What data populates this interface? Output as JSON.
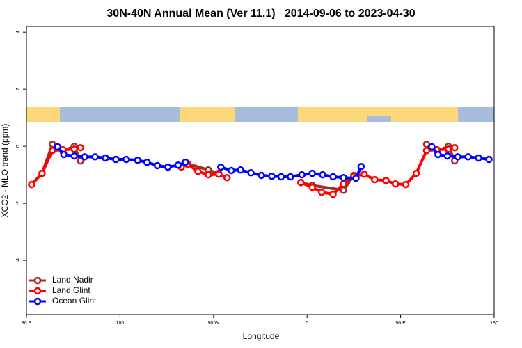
{
  "chart_data": {
    "type": "line",
    "title": "30N-40N Annual Mean (Ver 11.1)   2014-09-06 to 2023-04-30",
    "x_label": "Longitude",
    "y_label": "XCO2 - MLO trend (ppm)",
    "xlim": [
      90,
      540
    ],
    "xticks": [
      {
        "value": 90,
        "label": "90 E"
      },
      {
        "value": 180,
        "label": "180"
      },
      {
        "value": 270,
        "label": "90 W"
      },
      {
        "value": 360,
        "label": "0"
      },
      {
        "value": 450,
        "label": "90 E"
      },
      {
        "value": 540,
        "label": "180"
      }
    ],
    "ylim": [
      -5.9,
      4.2
    ],
    "yticks": [
      4,
      2,
      0,
      -2,
      -4
    ],
    "legend": "bottom-left",
    "series": [
      {
        "name": "Land Nadir",
        "color": "#a52a2a",
        "x": [
          95,
          105,
          115,
          125,
          136,
          142,
          null,
          245,
          265,
          275,
          null,
          354,
          365,
          395,
          405,
          null,
          475,
          485,
          496,
          502
        ],
        "values": [
          -1.34,
          -0.95,
          0.07,
          -0.17,
          0,
          -0.51,
          null,
          -0.61,
          -0.83,
          -0.95,
          null,
          -1.27,
          -1.37,
          -1.54,
          -1.02,
          null,
          0.07,
          -0.17,
          0,
          -0.51
        ]
      },
      {
        "name": "Land Glint",
        "color": "#ff0000",
        "x": [
          95,
          105,
          115,
          125,
          136,
          142,
          null,
          239,
          245,
          255,
          265,
          275,
          283,
          null,
          354,
          365,
          374,
          385,
          395,
          405,
          415,
          425,
          436,
          445,
          455,
          465,
          475,
          485,
          496,
          502
        ],
        "values": [
          -1.34,
          -0.95,
          -0.15,
          -0.12,
          -0.1,
          -0.05,
          null,
          -0.73,
          -0.63,
          -0.88,
          -1.0,
          -0.98,
          -1.1,
          null,
          -1.27,
          -1.44,
          -1.61,
          -1.68,
          -1.32,
          -1.05,
          -0.98,
          -1.17,
          -1.2,
          -1.32,
          -1.34,
          -0.95,
          -0.15,
          -0.12,
          -0.1,
          -0.05
        ]
      },
      {
        "name": "Ocean Glint",
        "color": "#0000ff",
        "x": [
          120,
          126,
          136,
          146,
          156,
          166,
          176,
          186,
          197,
          206,
          216,
          226,
          236,
          243,
          null,
          277,
          287,
          296,
          306,
          316,
          326,
          335,
          344,
          355,
          365,
          375,
          385,
          395,
          407,
          412,
          null,
          480,
          486,
          495,
          505,
          515,
          525,
          535
        ],
        "values": [
          -0.02,
          -0.29,
          -0.34,
          -0.37,
          -0.37,
          -0.41,
          -0.46,
          -0.46,
          -0.49,
          -0.56,
          -0.68,
          -0.73,
          -0.66,
          -0.56,
          null,
          -0.73,
          -0.85,
          -0.83,
          -0.93,
          -1.02,
          -1.05,
          -1.07,
          -1.07,
          -1.0,
          -0.95,
          -1.0,
          -1.07,
          -1.1,
          -1.12,
          -0.71,
          null,
          -0.02,
          -0.29,
          -0.34,
          -0.37,
          -0.37,
          -0.41,
          -0.46
        ]
      }
    ]
  }
}
